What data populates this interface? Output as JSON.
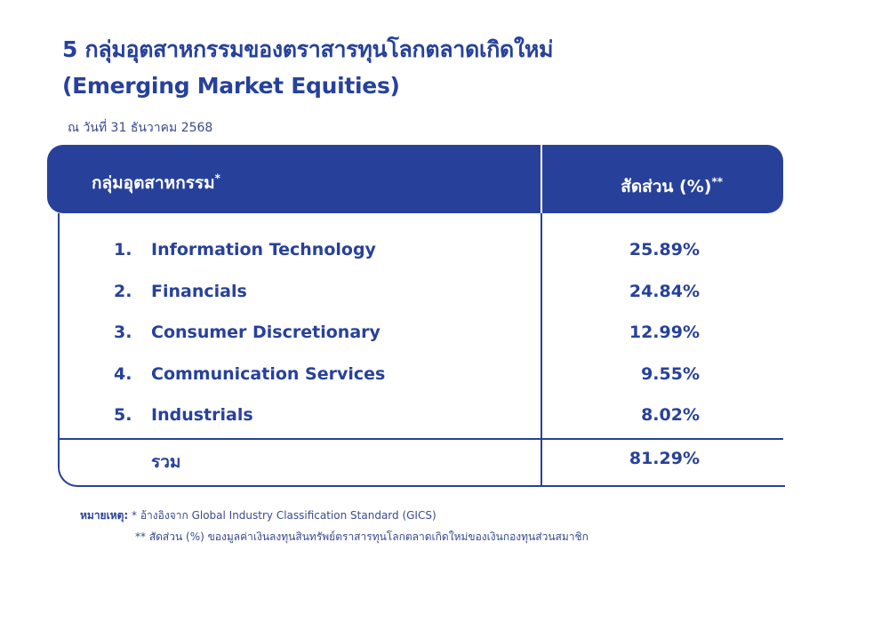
{
  "title_line1": "5 กลุ่มอุตสาหกรรมของตราสารทุนโลกตลาดเกิดใหม่",
  "title_line2": "(Emerging Market Equities)",
  "as_of": "ณ วันที่ 31 ธันวาคม 2568",
  "table": {
    "header_col1": "กลุ่มอุตสาหกรรม",
    "header_col1_mark": "*",
    "header_col2": "สัดส่วน (%)",
    "header_col2_mark": "**",
    "rows": [
      {
        "num": "1.",
        "name": "Information Technology",
        "value": "25.89%"
      },
      {
        "num": "2.",
        "name": "Financials",
        "value": "24.84%"
      },
      {
        "num": "3.",
        "name": "Consumer Discretionary",
        "value": "12.99%"
      },
      {
        "num": "4.",
        "name": "Communication Services",
        "value": "9.55%"
      },
      {
        "num": "5.",
        "name": "Industrials",
        "value": "8.02%"
      }
    ],
    "total_label": "รวม",
    "total_value": "81.29%"
  },
  "notes": {
    "label": "หมายเหตุ:",
    "note1": "* อ้างอิงจาก Global Industry Classification Standard (GICS)",
    "note2": "** สัดส่วน (%) ของมูลค่าเงินลงทุนสินทรัพย์ตราสารทุนโลกตลาดเกิดใหม่ของเงินกองทุนส่วนสมาชิก"
  },
  "colors": {
    "primary": "#27419b",
    "background": "#ffffff"
  }
}
